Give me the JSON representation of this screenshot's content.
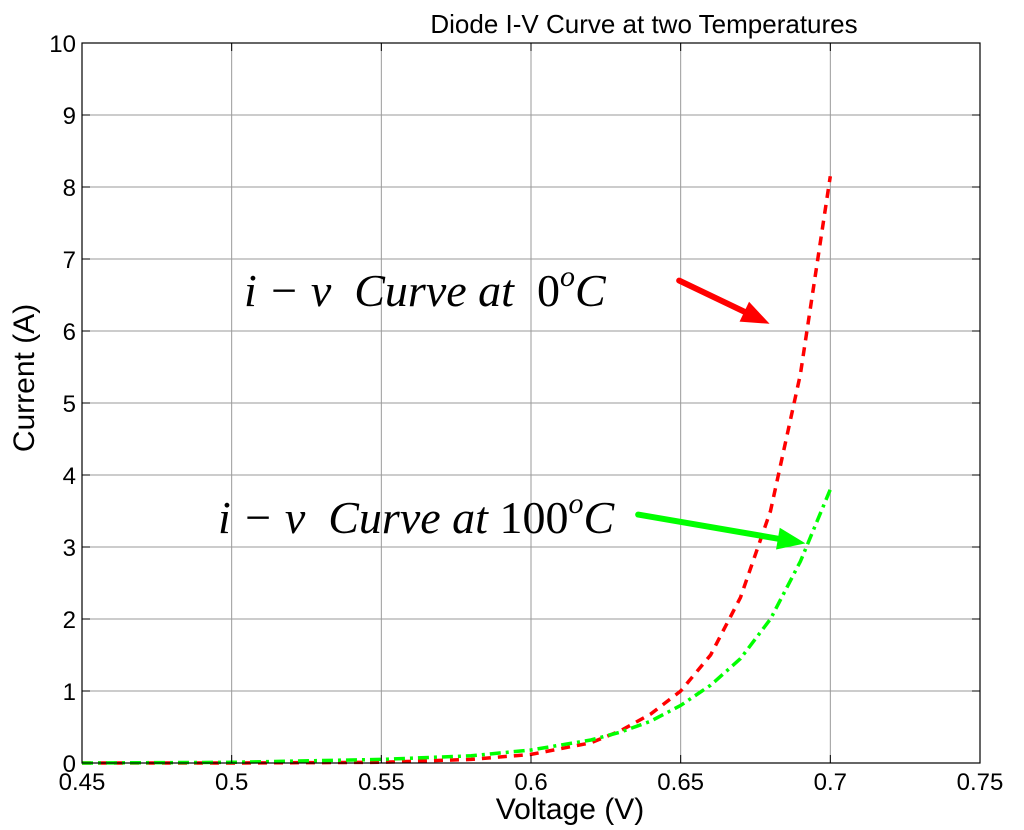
{
  "chart_data": {
    "type": "line",
    "title": "Diode I-V Curve at two Temperatures",
    "xlabel": "Voltage (V)",
    "ylabel": "Current (A)",
    "xlim": [
      0.45,
      0.75
    ],
    "ylim": [
      0,
      10
    ],
    "grid": true,
    "xticks": [
      0.45,
      0.5,
      0.55,
      0.6,
      0.65,
      0.7,
      0.75
    ],
    "xtick_labels": [
      "0.45",
      "0.5",
      "0.55",
      "0.6",
      "0.65",
      "0.7",
      "0.75"
    ],
    "yticks": [
      0,
      1,
      2,
      3,
      4,
      5,
      6,
      7,
      8,
      9,
      10
    ],
    "ytick_labels": [
      "0",
      "1",
      "2",
      "3",
      "4",
      "5",
      "6",
      "7",
      "8",
      "9",
      "10"
    ],
    "series": [
      {
        "name": "i-v Curve at 0°C",
        "color": "#ff0000",
        "style": "dashed",
        "x": [
          0.45,
          0.5,
          0.55,
          0.58,
          0.6,
          0.62,
          0.63,
          0.64,
          0.65,
          0.66,
          0.67,
          0.68,
          0.69,
          0.7
        ],
        "y": [
          0.0,
          0.0,
          0.01,
          0.05,
          0.12,
          0.28,
          0.45,
          0.68,
          1.0,
          1.5,
          2.3,
          3.5,
          5.4,
          8.15
        ]
      },
      {
        "name": "i-v Curve at 100°C",
        "color": "#00ff00",
        "style": "dashdot",
        "x": [
          0.45,
          0.5,
          0.55,
          0.58,
          0.6,
          0.62,
          0.63,
          0.64,
          0.65,
          0.66,
          0.67,
          0.68,
          0.69,
          0.7
        ],
        "y": [
          0.0,
          0.01,
          0.05,
          0.1,
          0.18,
          0.32,
          0.43,
          0.58,
          0.8,
          1.08,
          1.45,
          2.0,
          2.8,
          3.8
        ]
      }
    ],
    "annotations": [
      {
        "id": "cold",
        "prefix": "i − v  Curve at  ",
        "number": "0",
        "sup": "o",
        "unit": "C",
        "color": "#ff0000",
        "arrow_from": [
          0.6495,
          6.7
        ],
        "arrow_to": [
          0.6797,
          6.1
        ]
      },
      {
        "id": "hot",
        "prefix": "i − v  Curve at ",
        "number": "100",
        "sup": "o",
        "unit": "C",
        "color": "#00ff00",
        "arrow_from": [
          0.6358,
          3.45
        ],
        "arrow_to": [
          0.6917,
          3.05
        ]
      }
    ]
  }
}
